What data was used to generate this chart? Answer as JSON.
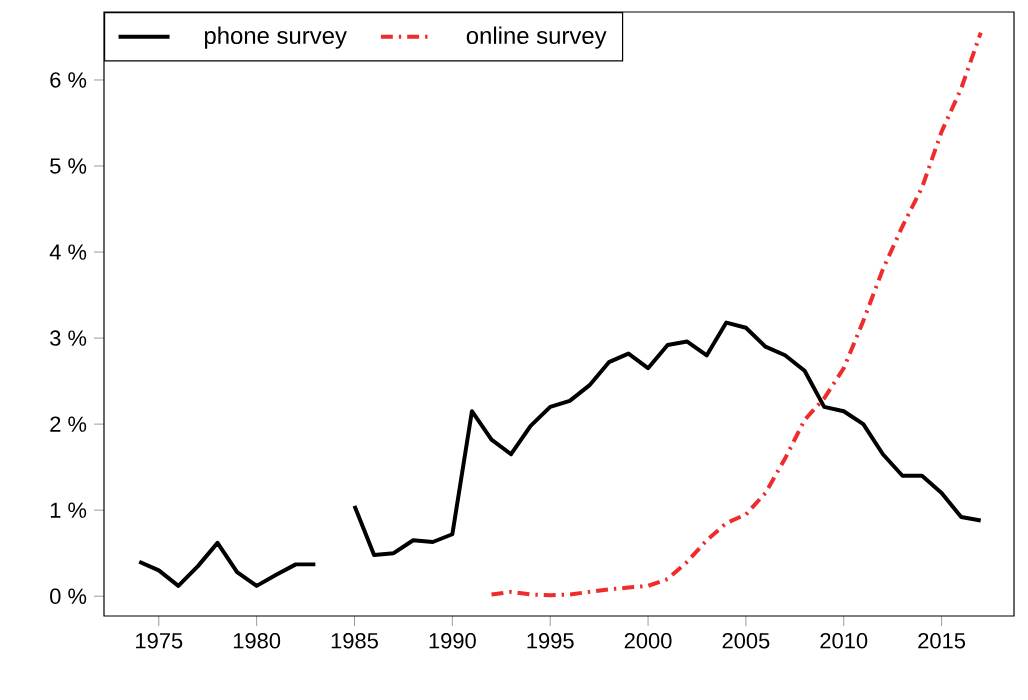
{
  "chart_data": {
    "type": "line",
    "x": [
      1974,
      1975,
      1976,
      1977,
      1978,
      1979,
      1980,
      1981,
      1982,
      1983,
      1984,
      1985,
      1986,
      1987,
      1988,
      1989,
      1990,
      1991,
      1992,
      1993,
      1994,
      1995,
      1996,
      1997,
      1998,
      1999,
      2000,
      2001,
      2002,
      2003,
      2004,
      2005,
      2006,
      2007,
      2008,
      2009,
      2010,
      2011,
      2012,
      2013,
      2014,
      2015,
      2016,
      2017
    ],
    "series": [
      {
        "name": "phone survey",
        "color": "#000000",
        "line_style": "solid",
        "values": [
          0.4,
          0.3,
          0.12,
          0.35,
          0.62,
          0.28,
          0.12,
          0.25,
          0.37,
          0.37,
          null,
          1.05,
          0.48,
          0.5,
          0.65,
          0.63,
          0.72,
          2.15,
          1.82,
          1.65,
          1.98,
          2.2,
          2.27,
          2.45,
          2.72,
          2.82,
          2.65,
          2.92,
          2.96,
          2.8,
          3.18,
          3.12,
          2.9,
          2.8,
          2.62,
          2.2,
          2.15,
          2.0,
          1.65,
          1.4,
          1.4,
          1.2,
          0.92,
          0.88
        ]
      },
      {
        "name": "online survey",
        "color": "#ee2c2c",
        "line_style": "dashdot",
        "x": [
          1992,
          1993,
          1994,
          1995,
          1996,
          1997,
          1998,
          1999,
          2000,
          2001,
          2002,
          2003,
          2004,
          2005,
          2006,
          2007,
          2008,
          2009,
          2010,
          2011,
          2012,
          2013,
          2014,
          2015,
          2016,
          2017
        ],
        "values": [
          0.02,
          0.05,
          0.02,
          0.01,
          0.02,
          0.05,
          0.08,
          0.1,
          0.12,
          0.2,
          0.4,
          0.65,
          0.85,
          0.95,
          1.2,
          1.6,
          2.05,
          2.3,
          2.65,
          3.2,
          3.8,
          4.3,
          4.75,
          5.4,
          5.9,
          6.55
        ]
      }
    ],
    "xlim": [
      1972.2,
      2018.7
    ],
    "ylim": [
      -0.23,
      6.79
    ],
    "xticks": [
      1975,
      1980,
      1985,
      1990,
      1995,
      2000,
      2005,
      2010,
      2015
    ],
    "yticks": [
      {
        "value": 0,
        "label": "0 %"
      },
      {
        "value": 1,
        "label": "1 %"
      },
      {
        "value": 2,
        "label": "2 %"
      },
      {
        "value": 3,
        "label": "3 %"
      },
      {
        "value": 4,
        "label": "4 %"
      },
      {
        "value": 5,
        "label": "5 %"
      },
      {
        "value": 6,
        "label": "6 %"
      }
    ],
    "legend": "top left",
    "grid": false
  }
}
